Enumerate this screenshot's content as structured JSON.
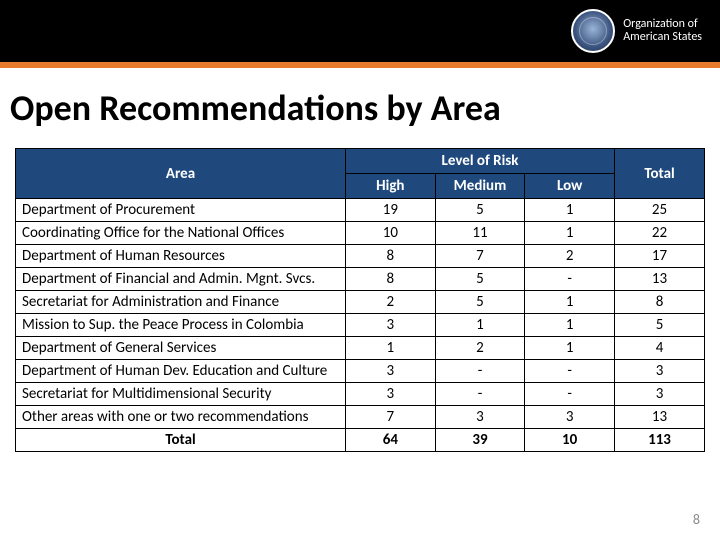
{
  "accent_color": "#e97a2c",
  "header_bg": "#000000",
  "table_header_bg": "#1f497d",
  "logo": {
    "line1": "Organization of",
    "line2": "American States"
  },
  "title": "Open Recommendations by Area",
  "columns": {
    "area": "Area",
    "risk_group": "Level of Risk",
    "high": "High",
    "medium": "Medium",
    "low": "Low",
    "total": "Total"
  },
  "rows": [
    {
      "area": "Department of Procurement",
      "high": "19",
      "medium": "5",
      "low": "1",
      "total": "25"
    },
    {
      "area": "Coordinating Office for the National Offices",
      "high": "10",
      "medium": "11",
      "low": "1",
      "total": "22"
    },
    {
      "area": "Department of Human Resources",
      "high": "8",
      "medium": "7",
      "low": "2",
      "total": "17"
    },
    {
      "area": "Department of Financial and Admin. Mgnt. Svcs.",
      "high": "8",
      "medium": "5",
      "low": "-",
      "total": "13"
    },
    {
      "area": "Secretariat for Administration and Finance",
      "high": "2",
      "medium": "5",
      "low": "1",
      "total": "8"
    },
    {
      "area": "Mission to Sup. the Peace Process in Colombia",
      "high": "3",
      "medium": "1",
      "low": "1",
      "total": "5"
    },
    {
      "area": "Department of General Services",
      "high": "1",
      "medium": "2",
      "low": "1",
      "total": "4"
    },
    {
      "area": "Department of Human Dev. Education and Culture",
      "high": "3",
      "medium": "-",
      "low": "-",
      "total": "3"
    },
    {
      "area": "Secretariat for Multidimensional Security",
      "high": "3",
      "medium": "-",
      "low": "-",
      "total": "3"
    },
    {
      "area": "Other areas with one or two recommendations",
      "high": "7",
      "medium": "3",
      "low": "3",
      "total": "13"
    }
  ],
  "totals": {
    "area": "Total",
    "high": "64",
    "medium": "39",
    "low": "10",
    "total": "113"
  },
  "page_number": "8"
}
